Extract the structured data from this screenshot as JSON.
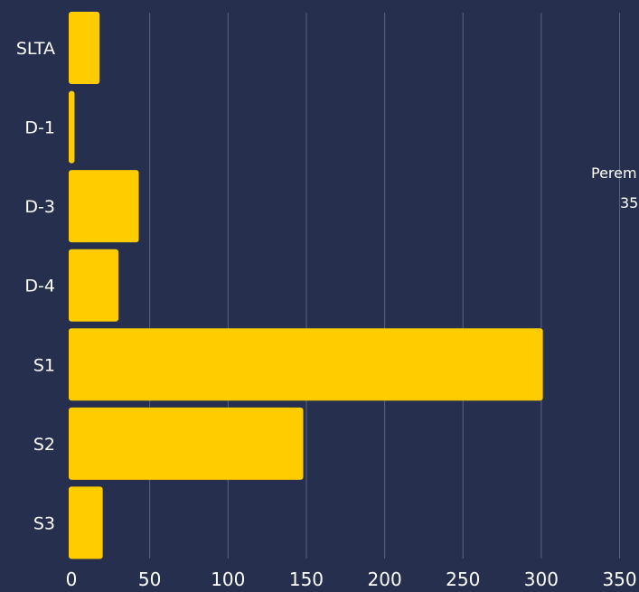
{
  "colors": {
    "background": "#262f4e",
    "bar": "#ffcc00",
    "grid": "#5a6380",
    "text": "#ffffff"
  },
  "tooltip": {
    "line1": "Perem",
    "line2": "35"
  },
  "chart_data": {
    "type": "bar",
    "orientation": "horizontal",
    "categories": [
      "SLTA",
      "D-1",
      "D-3",
      "D-4",
      "S1",
      "S2",
      "S3"
    ],
    "values": [
      18,
      2,
      43,
      30,
      301,
      148,
      20
    ],
    "xlim": [
      0,
      350
    ],
    "xticks": [
      0,
      50,
      100,
      150,
      200,
      250,
      300,
      350
    ],
    "title": "",
    "xlabel": "",
    "ylabel": "",
    "grid": "vertical"
  }
}
